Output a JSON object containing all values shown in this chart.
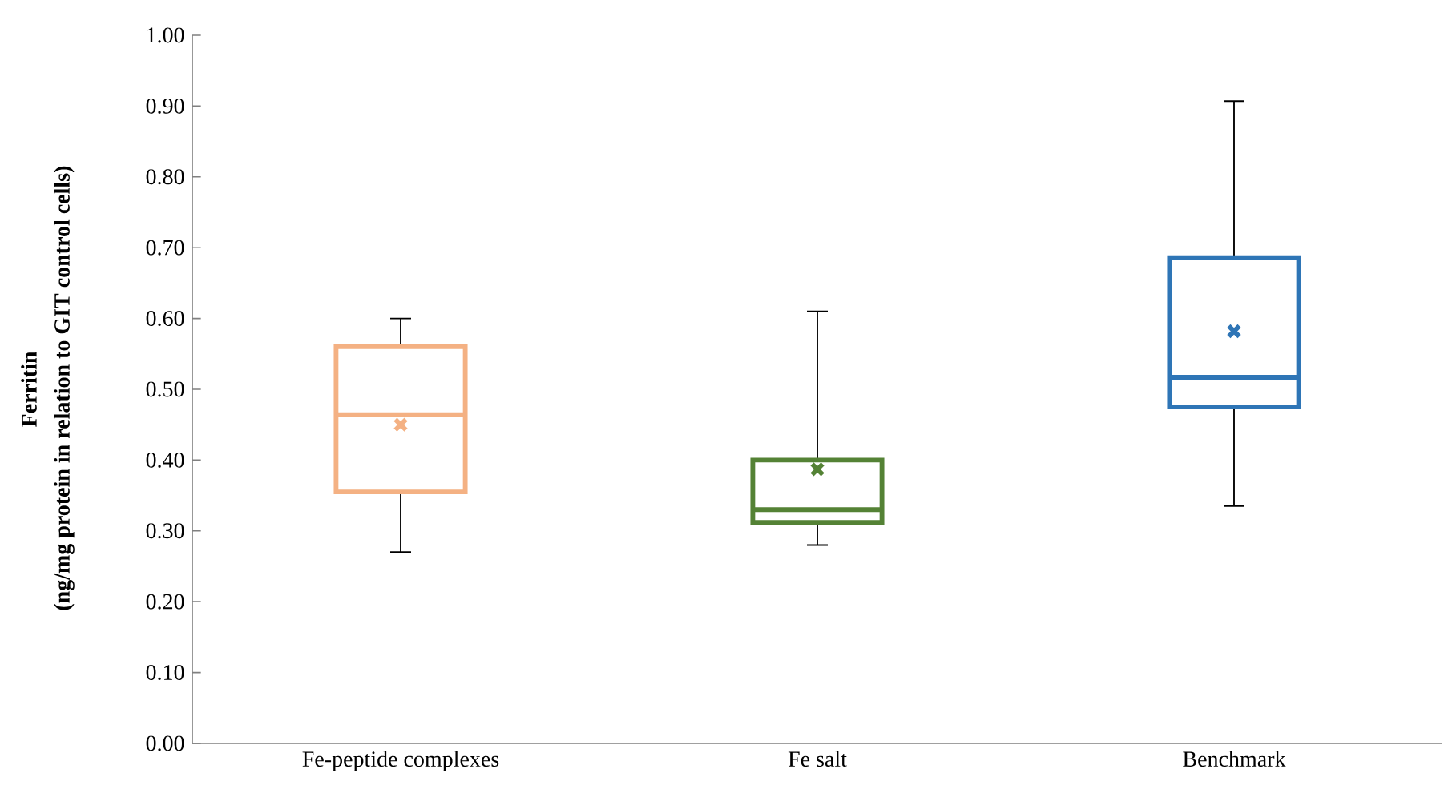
{
  "chart_data": {
    "type": "box",
    "ylabel": "Ferritin",
    "annotations": [
      "(ng/mg protein in relation to GIT  control cells)"
    ],
    "categories": [
      "Fe-peptide complexes",
      "Fe salt",
      "Benchmark"
    ],
    "colors": [
      "#f4b183",
      "#548235",
      "#2e75b6"
    ],
    "boxes": [
      {
        "low": 0.27,
        "q1": 0.355,
        "median": 0.464,
        "q3": 0.56,
        "high": 0.6,
        "mean": 0.45
      },
      {
        "low": 0.28,
        "q1": 0.312,
        "median": 0.33,
        "q3": 0.4,
        "high": 0.61,
        "mean": 0.387
      },
      {
        "low": 0.335,
        "q1": 0.475,
        "median": 0.517,
        "q3": 0.686,
        "high": 0.907,
        "mean": 0.582
      }
    ],
    "ylim": [
      0,
      1
    ],
    "yticks": [
      {
        "value": 0,
        "label": "0.00"
      },
      {
        "value": 0.1,
        "label": "0.10"
      },
      {
        "value": 0.2,
        "label": "0.20"
      },
      {
        "value": 0.3,
        "label": "0.30"
      },
      {
        "value": 0.4,
        "label": "0.40"
      },
      {
        "value": 0.5,
        "label": "0.50"
      },
      {
        "value": 0.6,
        "label": "0.60"
      },
      {
        "value": 0.7,
        "label": "0.70"
      },
      {
        "value": 0.8,
        "label": "0.80"
      },
      {
        "value": 0.9,
        "label": "0.90"
      },
      {
        "value": 1,
        "label": "1.00"
      }
    ]
  }
}
